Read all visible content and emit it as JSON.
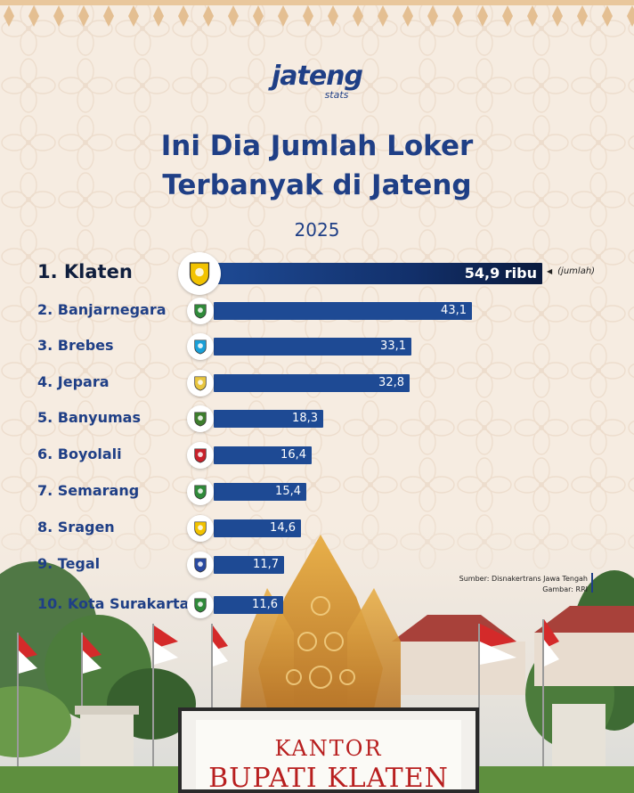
{
  "brand": {
    "name": "jateng",
    "tagline": "stats"
  },
  "title_line1": "Ini Dia Jumlah Loker",
  "title_line2": "Terbanyak di Jateng",
  "subtitle": "2025",
  "unit_note": "(jumlah)",
  "source_line1": "Sumber: Disnakertrans Jawa Tengah",
  "source_line2": "Gambar: RRI",
  "sign": {
    "line1": "KANTOR",
    "line2": "BUPATI KLATEN"
  },
  "colors": {
    "primary": "#1f3f86",
    "bar": "#1e4a94",
    "bar_dark": "#0a1a3d",
    "background": "#f6ece1",
    "sign_text": "#b81f1f"
  },
  "chart_data": {
    "type": "bar",
    "orientation": "horizontal",
    "title": "Ini Dia Jumlah Loker Terbanyak di Jateng",
    "subtitle": "2025",
    "unit": "ribu",
    "categories": [
      "1. Klaten",
      "2. Banjarnegara",
      "3. Brebes",
      "4. Jepara",
      "5. Banyumas",
      "6. Boyolali",
      "7. Semarang",
      "8. Sragen",
      "9. Tegal",
      "10. Kota Surakarta"
    ],
    "values": [
      54.9,
      43.1,
      33.1,
      32.8,
      18.3,
      16.4,
      15.4,
      14.6,
      11.7,
      11.6
    ],
    "value_labels": [
      "54,9 ribu",
      "43,1",
      "33,1",
      "32,8",
      "18,3",
      "16,4",
      "15,4",
      "14,6",
      "11,7",
      "11,6"
    ],
    "emblem_icons": [
      "klaten-emblem-icon",
      "banjarnegara-emblem-icon",
      "brebes-emblem-icon",
      "jepara-emblem-icon",
      "banyumas-emblem-icon",
      "boyolali-emblem-icon",
      "semarang-emblem-icon",
      "sragen-emblem-icon",
      "tegal-emblem-icon",
      "surakarta-emblem-icon"
    ],
    "emblem_colors": [
      "#f2c300",
      "#2f8a3a",
      "#1aa0d8",
      "#e8c640",
      "#3d7d2c",
      "#c8202a",
      "#2f8a3a",
      "#f2c300",
      "#2a4aa0",
      "#2f8a3a"
    ],
    "xlim": [
      0,
      54.9
    ],
    "grid": false,
    "legend": "none"
  }
}
